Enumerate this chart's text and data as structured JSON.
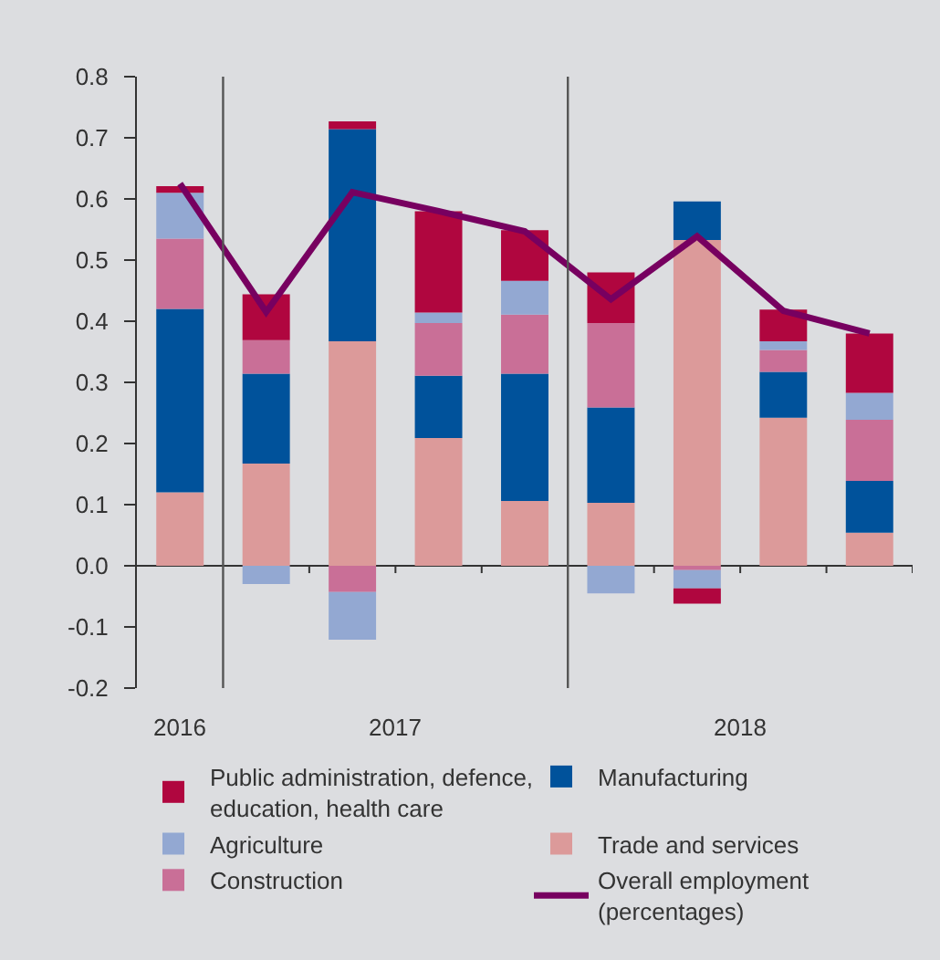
{
  "chart_data": {
    "type": "bar",
    "stacked": true,
    "categories": [
      null,
      null,
      null,
      null,
      null,
      null,
      null,
      null,
      null
    ],
    "annotations": [
      "2016",
      "2017",
      "2018"
    ],
    "series": [
      {
        "name": "Trade and services",
        "color": "#dc9a9a",
        "values": [
          0.12,
          0.167,
          0.367,
          0.209,
          0.106,
          0.103,
          0.533,
          0.242,
          0.054
        ]
      },
      {
        "name": "Manufacturing",
        "color": "#00529b",
        "values": [
          0.3,
          0.147,
          0.347,
          0.102,
          0.208,
          0.156,
          0.063,
          0.075,
          0.085
        ]
      },
      {
        "name": "Construction",
        "color": "#c96f97",
        "values": [
          0.115,
          0.055,
          -0.043,
          0.086,
          0.097,
          0.138,
          -0.007,
          0.036,
          0.1
        ]
      },
      {
        "name": "Agriculture",
        "color": "#93a8d2",
        "values": [
          0.075,
          -0.03,
          -0.078,
          0.017,
          0.055,
          -0.045,
          -0.03,
          0.014,
          0.044
        ]
      },
      {
        "name": "Public administration, defence, education, health care",
        "color": "#b0063f",
        "values": [
          0.011,
          0.075,
          0.013,
          0.166,
          0.083,
          0.083,
          -0.025,
          0.052,
          0.097
        ]
      },
      {
        "name": "Overall employment (percentages)",
        "type": "line",
        "color": "#770060",
        "values": [
          0.625,
          0.415,
          0.611,
          0.58,
          0.547,
          0.436,
          0.539,
          0.417,
          0.38
        ]
      }
    ],
    "ylim": [
      -0.2,
      0.8
    ],
    "yticks": [
      -0.2,
      -0.1,
      {
        "value": 0,
        "label": "0.0"
      },
      0.1,
      0.2,
      0.3,
      0.4,
      0.5,
      0.6,
      0.7,
      0.8
    ],
    "grid": false,
    "legend": "bottom",
    "marker": "none",
    "line_style": "solid"
  }
}
